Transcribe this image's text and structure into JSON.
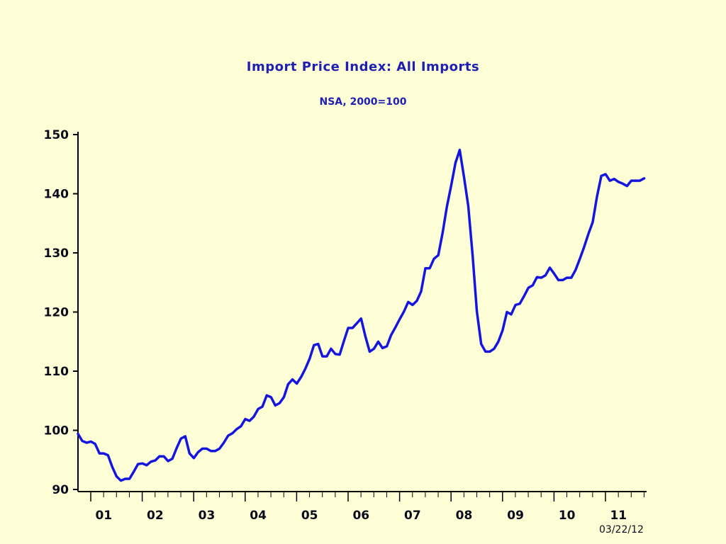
{
  "chart_data": {
    "type": "line",
    "title": "Import Price Index: All Imports",
    "subtitle": "NSA, 2000=100",
    "date_stamp": "03/22/12",
    "ylim": [
      90,
      150
    ],
    "y_ticks": [
      90,
      100,
      110,
      120,
      130,
      140,
      150
    ],
    "y_tick_labels": [
      "90",
      "100",
      "110",
      "120",
      "130",
      "140",
      "150"
    ],
    "x_tick_labels": [
      "01",
      "02",
      "03",
      "04",
      "05",
      "06",
      "07",
      "08",
      "09",
      "10",
      "11"
    ],
    "x_start_year": 2001,
    "n_months": 133,
    "grid": false,
    "legend": false,
    "line_color": "#1515e0",
    "text_color": "#1f1fb4",
    "background_color": "#fefed6",
    "series": [
      {
        "values": [
          99.4,
          98.2,
          97.9,
          98.1,
          97.7,
          96.1,
          96.1,
          95.8,
          93.8,
          92.2,
          91.5,
          91.8,
          91.8,
          93.0,
          94.3,
          94.4,
          94.1,
          94.7,
          94.9,
          95.6,
          95.6,
          94.8,
          95.2,
          97.0,
          98.6,
          99.0,
          96.1,
          95.3,
          96.3,
          96.9,
          96.9,
          96.5,
          96.5,
          96.9,
          97.9,
          99.1,
          99.5,
          100.2,
          100.7,
          101.9,
          101.6,
          102.3,
          103.6,
          104.0,
          105.9,
          105.6,
          104.2,
          104.6,
          105.6,
          107.8,
          108.6,
          107.9,
          109.0,
          110.4,
          112.1,
          114.4,
          114.6,
          112.5,
          112.5,
          113.8,
          112.9,
          112.8,
          115.1,
          117.3,
          117.3,
          118.1,
          118.9,
          115.9,
          113.3,
          113.8,
          115.0,
          113.9,
          114.2,
          116.1,
          117.4,
          118.8,
          120.1,
          121.7,
          121.2,
          121.9,
          123.5,
          127.4,
          127.4,
          129.0,
          129.6,
          133.4,
          137.8,
          141.4,
          145.2,
          147.4,
          142.8,
          137.9,
          129.6,
          120.1,
          114.6,
          113.3,
          113.3,
          113.8,
          115.0,
          116.9,
          120.0,
          119.6,
          121.2,
          121.4,
          122.7,
          124.1,
          124.5,
          125.9,
          125.8,
          126.2,
          127.5,
          126.5,
          125.4,
          125.4,
          125.8,
          125.8,
          127.1,
          129.0,
          131.0,
          133.2,
          135.2,
          139.5,
          143.0,
          143.3,
          142.2,
          142.5,
          142.0,
          141.7,
          141.3,
          142.2,
          142.2,
          142.2,
          142.6
        ]
      }
    ]
  }
}
